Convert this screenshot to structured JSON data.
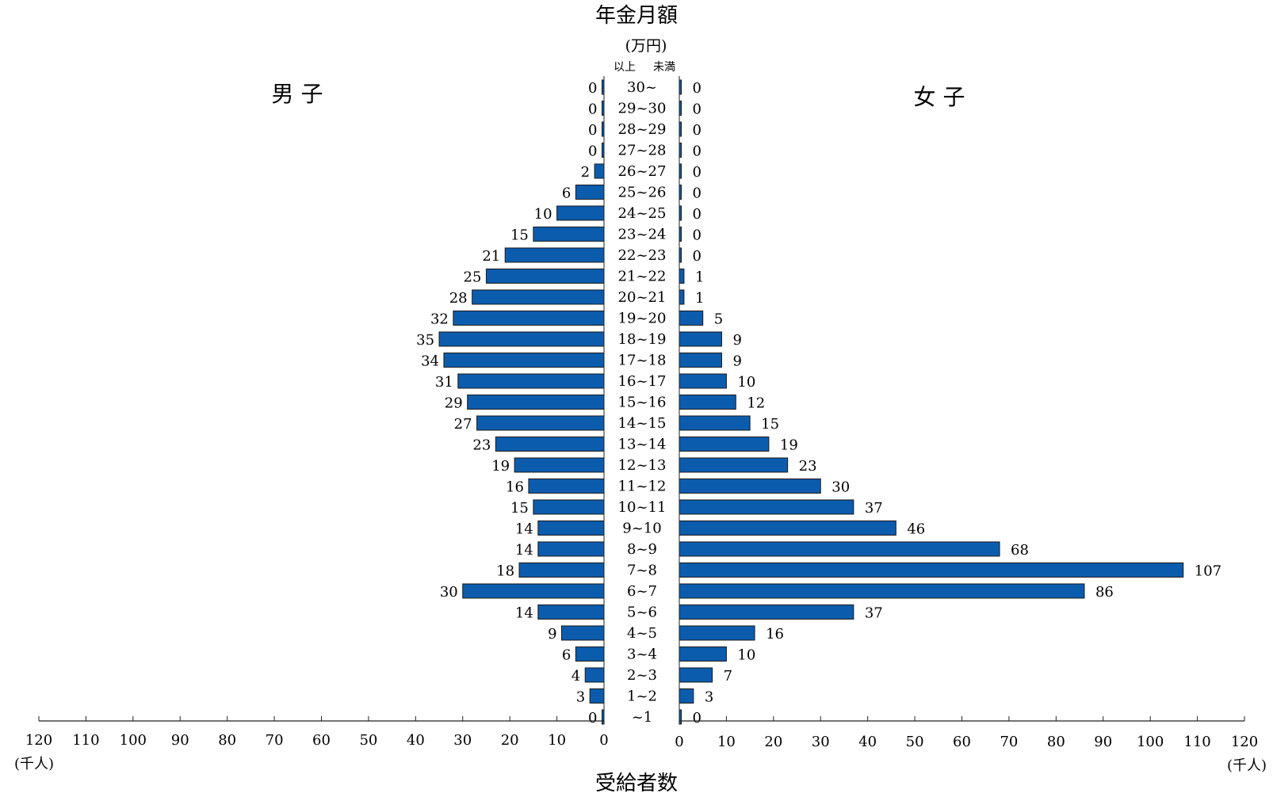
{
  "chart_data": {
    "type": "bar",
    "layout": "population-pyramid (horizontal bars, two sides)",
    "title": "年金月額",
    "title_unit": "(万円)",
    "range_header_lower": "以上",
    "range_header_upper": "未満",
    "xlabel": "受給者数",
    "x_unit": "(千人)",
    "xlim": [
      0,
      120
    ],
    "x_ticks": [
      0,
      10,
      20,
      30,
      40,
      50,
      60,
      70,
      80,
      90,
      100,
      110,
      120
    ],
    "bar_color": "#0b5cad",
    "categories": [
      "30~",
      "29~30",
      "28~29",
      "27~28",
      "26~27",
      "25~26",
      "24~25",
      "23~24",
      "22~23",
      "21~22",
      "20~21",
      "19~20",
      "18~19",
      "17~18",
      "16~17",
      "15~16",
      "14~15",
      "13~14",
      "12~13",
      "11~12",
      "10~11",
      "9~10",
      "8~9",
      "7~8",
      "6~7",
      "5~6",
      "4~5",
      "3~4",
      "2~3",
      "1~2",
      "~1"
    ],
    "series": [
      {
        "name": "男 子",
        "side": "left",
        "values": [
          0,
          0,
          0,
          0,
          2,
          6,
          10,
          15,
          21,
          25,
          28,
          32,
          35,
          34,
          31,
          29,
          27,
          23,
          19,
          16,
          15,
          14,
          14,
          18,
          30,
          14,
          9,
          6,
          4,
          3,
          0
        ]
      },
      {
        "name": "女 子",
        "side": "right",
        "values": [
          0,
          0,
          0,
          0,
          0,
          0,
          0,
          0,
          0,
          1,
          1,
          5,
          9,
          9,
          10,
          12,
          15,
          19,
          23,
          30,
          37,
          46,
          68,
          107,
          86,
          37,
          16,
          10,
          7,
          3,
          0
        ]
      }
    ]
  }
}
